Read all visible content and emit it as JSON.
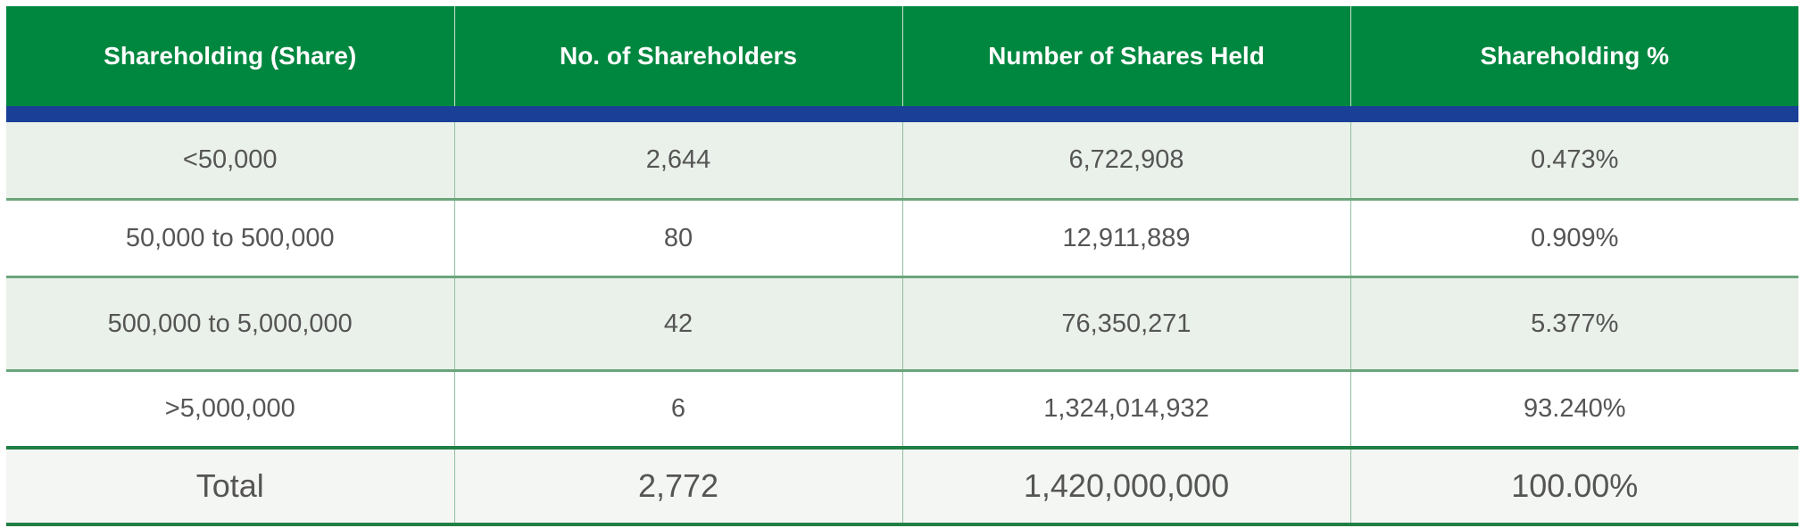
{
  "table": {
    "headers": [
      "Shareholding (Share)",
      "No. of Shareholders",
      "Number of Shares Held",
      "Shareholding %"
    ],
    "rows": [
      [
        "<50,000",
        "2,644",
        "6,722,908",
        "0.473%"
      ],
      [
        "50,000 to 500,000",
        "80",
        "12,911,889",
        "0.909%"
      ],
      [
        "500,000 to 5,000,000",
        "42",
        "76,350,271",
        "5.377%"
      ],
      [
        ">5,000,000",
        "6",
        "1,324,014,932",
        "93.240%"
      ]
    ],
    "total": [
      "Total",
      "2,772",
      "1,420,000,000",
      "100.00%"
    ]
  },
  "colors": {
    "header_green": "#00873f",
    "accent_blue": "#1a3f96",
    "row_shade": "#eaf1ea",
    "rule_green": "#1f7f45"
  }
}
